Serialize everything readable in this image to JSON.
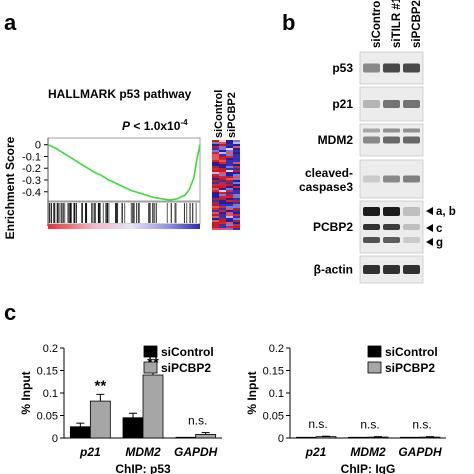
{
  "panels": {
    "a": {
      "letter": "a",
      "title": "HALLMARK p53 pathway",
      "p_prefix": "P",
      "p_value": " < 1.0x10",
      "p_exp": "-4",
      "ylabel": "Enrichment Score",
      "heatmap_cols": [
        "siControl",
        "siPCBP2"
      ]
    },
    "b": {
      "letter": "b",
      "lanes": [
        "siControl",
        "siTILR #1",
        "siPCBP2"
      ],
      "blots": [
        "p53",
        "p21",
        "MDM2",
        "cleaved-caspase3",
        "PCBP2",
        "β-actin"
      ],
      "blot_label_lines": {
        "cleaved-caspase3": [
          "cleaved-",
          "caspase3"
        ]
      },
      "band_marks": [
        "a, b",
        "c",
        "g"
      ]
    },
    "c": {
      "letter": "c"
    }
  },
  "chart_data": [
    {
      "type": "line",
      "panel": "a",
      "title": "HALLMARK p53 pathway",
      "ylabel": "Enrichment Score",
      "ylim": [
        -0.47,
        0.04
      ],
      "yticks": [
        0,
        -0.1,
        -0.2,
        -0.3,
        -0.4
      ],
      "ytick_labels": [
        "0",
        "-0.1",
        "-0.2",
        "-0.3",
        "-0.4"
      ],
      "x": [
        0,
        0.05,
        0.1,
        0.15,
        0.2,
        0.25,
        0.3,
        0.35,
        0.4,
        0.45,
        0.5,
        0.55,
        0.6,
        0.65,
        0.7,
        0.75,
        0.8,
        0.85,
        0.9,
        0.93,
        0.96,
        0.98,
        1.0
      ],
      "y": [
        0,
        -0.03,
        -0.07,
        -0.11,
        -0.15,
        -0.19,
        -0.23,
        -0.26,
        -0.3,
        -0.33,
        -0.36,
        -0.39,
        -0.41,
        -0.43,
        -0.45,
        -0.46,
        -0.47,
        -0.46,
        -0.43,
        -0.38,
        -0.28,
        -0.12,
        0.0
      ]
    },
    {
      "type": "bar",
      "panel": "c-left",
      "ylabel": "% Input",
      "xlabel": "ChIP:  p53",
      "categories": [
        "p21",
        "MDM2",
        "GAPDH"
      ],
      "ylim": [
        0,
        0.2
      ],
      "yticks": [
        0,
        0.05,
        0.1,
        0.15,
        0.2
      ],
      "ytick_labels": [
        "0",
        "0.05",
        "0.1",
        "0.15",
        "0.2"
      ],
      "series": [
        {
          "name": "siControl",
          "color": "#000000",
          "values": [
            0.025,
            0.045,
            0.0
          ],
          "errors": [
            0.008,
            0.01,
            0.0
          ]
        },
        {
          "name": "siPCBP2",
          "color": "#a6a6a6",
          "values": [
            0.082,
            0.14,
            0.008
          ],
          "errors": [
            0.015,
            0.008,
            0.004
          ]
        }
      ],
      "annotations": [
        "**",
        "**",
        "n.s."
      ]
    },
    {
      "type": "bar",
      "panel": "c-right",
      "ylabel": "% Input",
      "xlabel": "ChIP:  IgG",
      "categories": [
        "p21",
        "MDM2",
        "GAPDH"
      ],
      "ylim": [
        0,
        0.2
      ],
      "yticks": [
        0,
        0.05,
        0.1,
        0.15,
        0.2
      ],
      "ytick_labels": [
        "0",
        "0.05",
        "0.1",
        "0.15",
        "0.2"
      ],
      "series": [
        {
          "name": "siControl",
          "color": "#000000",
          "values": [
            0.0,
            0.0,
            0.0
          ],
          "errors": [
            0,
            0,
            0
          ]
        },
        {
          "name": "siPCBP2",
          "color": "#a6a6a6",
          "values": [
            0.003,
            0.002,
            0.002
          ],
          "errors": [
            0.001,
            0.001,
            0.001
          ]
        }
      ],
      "annotations": [
        "n.s.",
        "n.s.",
        "n.s."
      ]
    }
  ]
}
